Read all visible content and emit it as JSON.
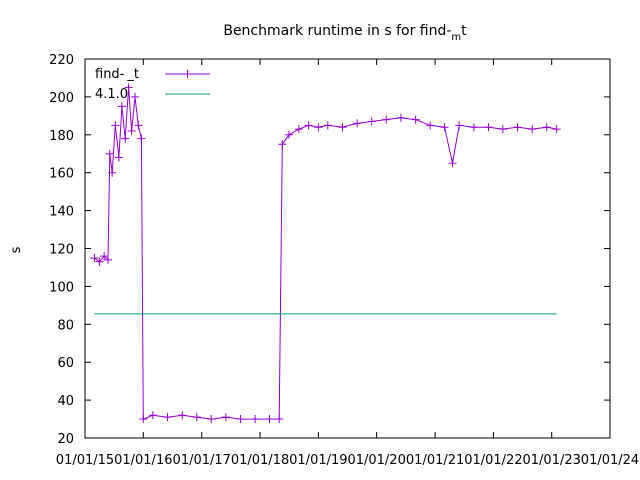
{
  "chart_data": {
    "type": "line",
    "title_main": "Benchmark runtime in s for find-",
    "title_sub": "m",
    "title_end": "t",
    "xlabel": "",
    "ylabel": "s",
    "ylim": [
      20,
      220
    ],
    "yticks": [
      20,
      40,
      60,
      80,
      100,
      120,
      140,
      160,
      180,
      200,
      220
    ],
    "xlim": [
      "2015-01-01",
      "2024-01-01"
    ],
    "xticks": [
      {
        "date": "2015-01-01",
        "label": "01/01/15"
      },
      {
        "date": "2016-01-01",
        "label": "01/01/16"
      },
      {
        "date": "2017-01-01",
        "label": "01/01/17"
      },
      {
        "date": "2018-01-01",
        "label": "01/01/18"
      },
      {
        "date": "2019-01-01",
        "label": "01/01/19"
      },
      {
        "date": "2020-01-01",
        "label": "01/01/20"
      },
      {
        "date": "2021-01-01",
        "label": "01/01/21"
      },
      {
        "date": "2022-01-01",
        "label": "01/01/22"
      },
      {
        "date": "2023-01-01",
        "label": "01/01/23"
      },
      {
        "date": "2024-01-01",
        "label": "01/01/24"
      }
    ],
    "grid": false,
    "legend": "top-left",
    "series": [
      {
        "name": "find-_t",
        "color": "#9400d3",
        "marker": "plus",
        "points": [
          [
            "2015-03-01",
            115
          ],
          [
            "2015-04-01",
            113
          ],
          [
            "2015-05-01",
            116
          ],
          [
            "2015-05-25",
            114
          ],
          [
            "2015-06-05",
            170
          ],
          [
            "2015-06-20",
            160
          ],
          [
            "2015-07-10",
            185
          ],
          [
            "2015-08-01",
            168
          ],
          [
            "2015-08-20",
            195
          ],
          [
            "2015-09-10",
            178
          ],
          [
            "2015-10-01",
            205
          ],
          [
            "2015-10-20",
            182
          ],
          [
            "2015-11-10",
            200
          ],
          [
            "2015-12-01",
            185
          ],
          [
            "2015-12-20",
            178
          ],
          [
            "2016-01-01",
            30
          ],
          [
            "2016-03-01",
            32
          ],
          [
            "2016-06-01",
            31
          ],
          [
            "2016-09-01",
            32
          ],
          [
            "2016-12-01",
            31
          ],
          [
            "2017-03-01",
            30
          ],
          [
            "2017-06-01",
            31
          ],
          [
            "2017-09-01",
            30
          ],
          [
            "2017-12-01",
            30
          ],
          [
            "2018-03-01",
            30
          ],
          [
            "2018-05-01",
            30
          ],
          [
            "2018-05-20",
            175
          ],
          [
            "2018-07-01",
            180
          ],
          [
            "2018-09-01",
            183
          ],
          [
            "2018-11-01",
            185
          ],
          [
            "2019-01-01",
            184
          ],
          [
            "2019-03-01",
            185
          ],
          [
            "2019-06-01",
            184
          ],
          [
            "2019-09-01",
            186
          ],
          [
            "2019-12-01",
            187
          ],
          [
            "2020-03-01",
            188
          ],
          [
            "2020-06-01",
            189
          ],
          [
            "2020-09-01",
            188
          ],
          [
            "2020-12-01",
            185
          ],
          [
            "2021-03-01",
            184
          ],
          [
            "2021-04-20",
            165
          ],
          [
            "2021-06-01",
            185
          ],
          [
            "2021-09-01",
            184
          ],
          [
            "2021-12-01",
            184
          ],
          [
            "2022-03-01",
            183
          ],
          [
            "2022-06-01",
            184
          ],
          [
            "2022-09-01",
            183
          ],
          [
            "2022-12-01",
            184
          ],
          [
            "2023-02-01",
            183
          ]
        ]
      },
      {
        "name": "4.1.0",
        "color": "#009e73",
        "marker": "none",
        "points": [
          [
            "2015-03-01",
            85.5
          ],
          [
            "2023-02-01",
            85.5
          ]
        ]
      }
    ]
  }
}
